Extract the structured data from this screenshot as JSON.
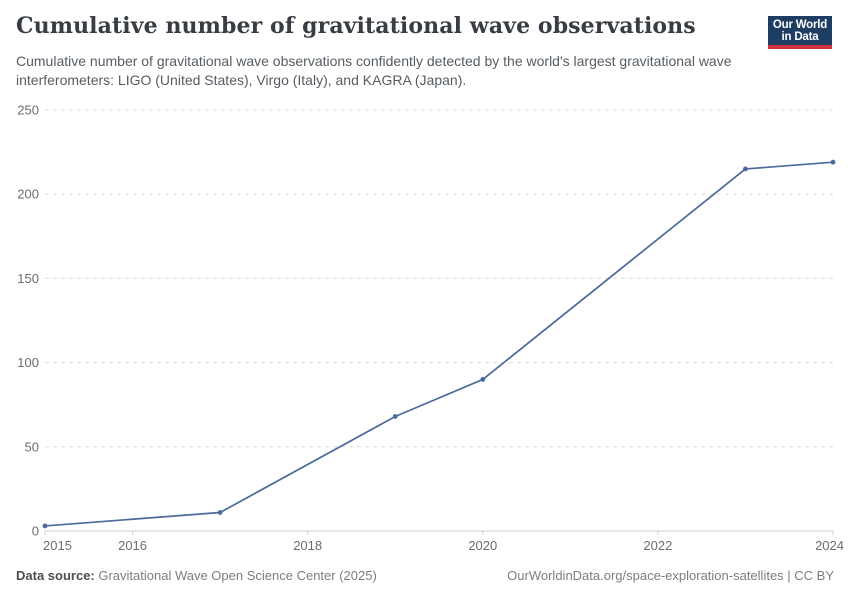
{
  "header": {
    "title": "Cumulative number of gravitational wave observations",
    "subtitle": "Cumulative number of gravitational wave observations confidently detected by the world's largest gravitational wave interferometers: LIGO (United States), Virgo (Italy), and KAGRA (Japan).",
    "logo": {
      "line1": "Our World",
      "line2": "in Data",
      "bg_color": "#1d3d63",
      "accent_color": "#cf3339"
    }
  },
  "chart_data": {
    "type": "line",
    "title": "Cumulative number of gravitational wave observations",
    "x": [
      2015,
      2017,
      2019,
      2020,
      2023,
      2024
    ],
    "y": [
      3,
      11,
      68,
      90,
      215,
      219
    ],
    "x_ticks": [
      2015,
      2016,
      2018,
      2020,
      2022,
      2024
    ],
    "y_ticks": [
      0,
      50,
      100,
      150,
      200,
      250
    ],
    "xlim": [
      2015,
      2024
    ],
    "ylim": [
      0,
      250
    ],
    "xlabel": "",
    "ylabel": "",
    "grid": true,
    "grid_style": "dashed",
    "legend": false,
    "line_color": "#4c6a9c",
    "grid_color": "#dcdcdc",
    "axis_color": "#cfcfcf",
    "tick_label_color": "#6d6d6d"
  },
  "footer": {
    "source_label": "Data source:",
    "source_value": " Gravitational Wave Open Science Center (2025)",
    "credit": "OurWorldinData.org/space-exploration-satellites | CC BY"
  }
}
